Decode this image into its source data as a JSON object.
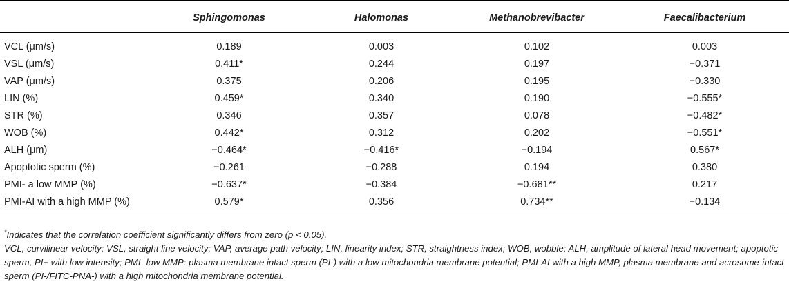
{
  "table": {
    "headers": [
      "",
      "Sphingomonas",
      "Halomonas",
      "Methanobrevibacter",
      "Faecalibacterium"
    ],
    "rows": [
      [
        "VCL (μm/s)",
        "0.189",
        "0.003",
        "0.102",
        "0.003"
      ],
      [
        "VSL (μm/s)",
        "0.411*",
        "0.244",
        "0.197",
        "−0.371"
      ],
      [
        "VAP (μm/s)",
        "0.375",
        "0.206",
        "0.195",
        "−0.330"
      ],
      [
        "LIN (%)",
        "0.459*",
        "0.340",
        "0.190",
        "−0.555*"
      ],
      [
        "STR (%)",
        "0.346",
        "0.357",
        "0.078",
        "−0.482*"
      ],
      [
        "WOB (%)",
        "0.442*",
        "0.312",
        "0.202",
        "−0.551*"
      ],
      [
        "ALH (μm)",
        "−0.464*",
        "−0.416*",
        "−0.194",
        "0.567*"
      ],
      [
        "Apoptotic sperm (%)",
        "−0.261",
        "−0.288",
        "0.194",
        "0.380"
      ],
      [
        "PMI- a low MMP (%)",
        "−0.637*",
        "−0.384",
        "−0.681**",
        "0.217"
      ],
      [
        "PMI-AI with a high MMP (%)",
        "0.579*",
        "0.356",
        "0.734**",
        "−0.134"
      ]
    ]
  },
  "footnotes": {
    "significance_marker": "*",
    "significance_text": "Indicates that the correlation coefficient significantly differs from zero (p < 0.05).",
    "abbreviations": "VCL, curvilinear velocity; VSL, straight line velocity; VAP, average path velocity; LIN, linearity index; STR, straightness index; WOB, wobble; ALH, amplitude of lateral head movement; apoptotic sperm, PI+ with low intensity; PMI- low MMP: plasma membrane intact sperm (PI-) with a low mitochondria membrane potential; PMI-AI with a high MMP, plasma membrane and acrosome-intact sperm (PI-/FITC-PNA-) with a high mitochondria membrane potential."
  }
}
